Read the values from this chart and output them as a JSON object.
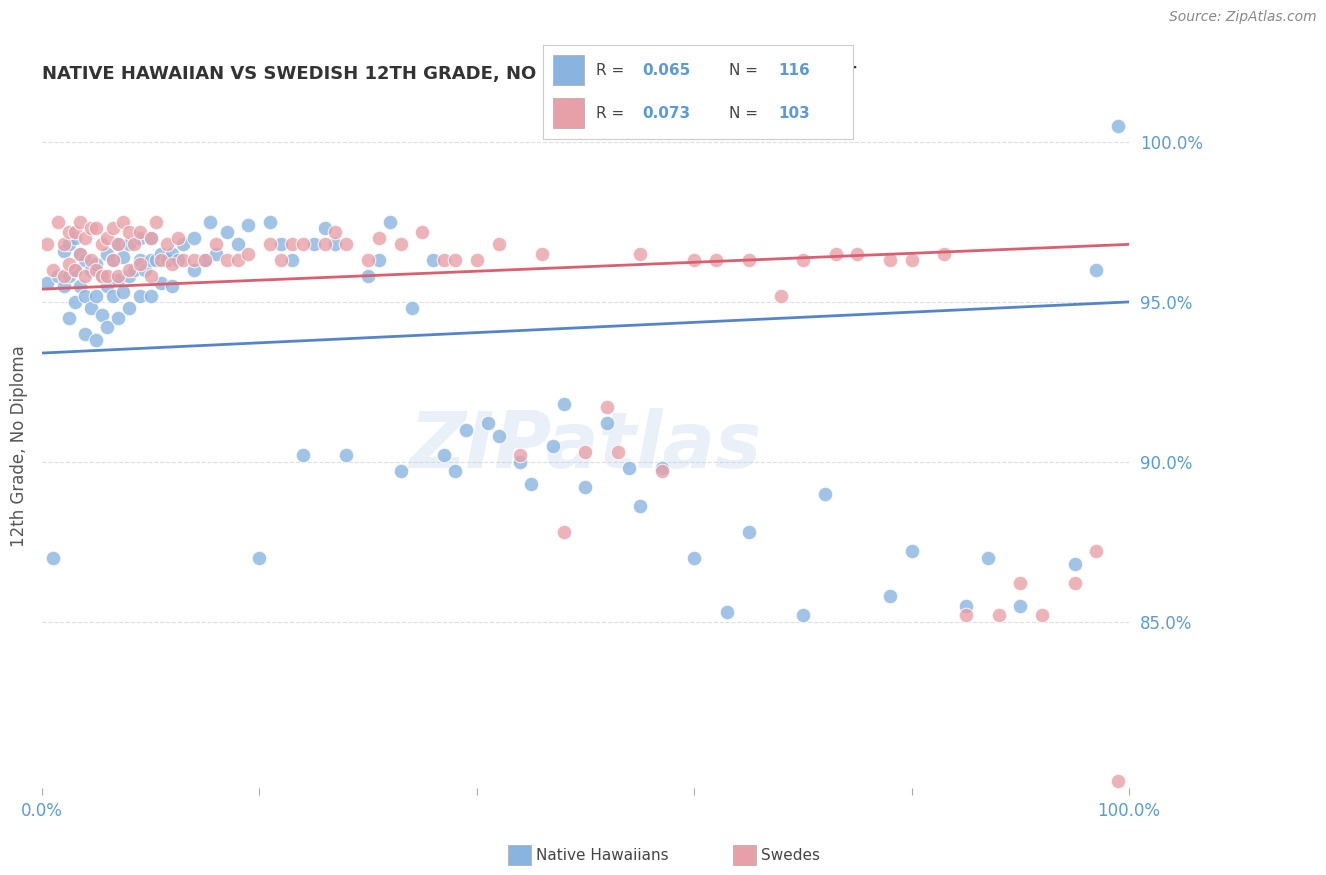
{
  "title": "NATIVE HAWAIIAN VS SWEDISH 12TH GRADE, NO DIPLOMA CORRELATION CHART",
  "source": "Source: ZipAtlas.com",
  "ylabel": "12th Grade, No Diploma",
  "x_min": 0.0,
  "x_max": 1.0,
  "y_min": 0.798,
  "y_max": 1.012,
  "x_ticks": [
    0.0,
    0.2,
    0.4,
    0.6,
    0.8,
    1.0
  ],
  "x_tick_labels": [
    "0.0%",
    "",
    "",
    "",
    "",
    "100.0%"
  ],
  "y_ticks": [
    0.85,
    0.9,
    0.95,
    1.0
  ],
  "y_tick_labels": [
    "85.0%",
    "90.0%",
    "95.0%",
    "100.0%"
  ],
  "color_blue": "#8ab4e0",
  "color_pink": "#e8a0a8",
  "line_color_blue": "#5585c8",
  "line_color_pink": "#d96070",
  "watermark": "ZIPatlas",
  "blue_line_y0": 0.934,
  "blue_line_y1": 0.95,
  "pink_line_y0": 0.954,
  "pink_line_y1": 0.968,
  "blue_scatter_x": [
    0.005,
    0.01,
    0.015,
    0.02,
    0.02,
    0.025,
    0.025,
    0.025,
    0.03,
    0.03,
    0.03,
    0.035,
    0.035,
    0.04,
    0.04,
    0.04,
    0.045,
    0.045,
    0.05,
    0.05,
    0.05,
    0.055,
    0.055,
    0.06,
    0.06,
    0.06,
    0.065,
    0.065,
    0.07,
    0.07,
    0.07,
    0.075,
    0.075,
    0.08,
    0.08,
    0.08,
    0.085,
    0.09,
    0.09,
    0.09,
    0.095,
    0.1,
    0.1,
    0.1,
    0.105,
    0.11,
    0.11,
    0.115,
    0.12,
    0.12,
    0.125,
    0.13,
    0.14,
    0.14,
    0.15,
    0.155,
    0.16,
    0.17,
    0.18,
    0.19,
    0.2,
    0.21,
    0.22,
    0.23,
    0.24,
    0.25,
    0.26,
    0.27,
    0.28,
    0.3,
    0.31,
    0.32,
    0.33,
    0.34,
    0.36,
    0.37,
    0.38,
    0.39,
    0.41,
    0.42,
    0.44,
    0.45,
    0.47,
    0.48,
    0.5,
    0.52,
    0.54,
    0.55,
    0.57,
    0.6,
    0.63,
    0.65,
    0.7,
    0.72,
    0.78,
    0.8,
    0.85,
    0.87,
    0.9,
    0.95,
    0.97,
    0.99
  ],
  "blue_scatter_y": [
    0.956,
    0.87,
    0.958,
    0.955,
    0.966,
    0.945,
    0.958,
    0.968,
    0.95,
    0.96,
    0.97,
    0.955,
    0.965,
    0.94,
    0.952,
    0.963,
    0.948,
    0.96,
    0.938,
    0.952,
    0.962,
    0.946,
    0.958,
    0.942,
    0.955,
    0.965,
    0.952,
    0.963,
    0.945,
    0.957,
    0.968,
    0.953,
    0.964,
    0.948,
    0.958,
    0.968,
    0.96,
    0.952,
    0.963,
    0.97,
    0.96,
    0.952,
    0.963,
    0.97,
    0.963,
    0.956,
    0.965,
    0.963,
    0.955,
    0.965,
    0.963,
    0.968,
    0.96,
    0.97,
    0.963,
    0.975,
    0.965,
    0.972,
    0.968,
    0.974,
    0.87,
    0.975,
    0.968,
    0.963,
    0.902,
    0.968,
    0.973,
    0.968,
    0.902,
    0.958,
    0.963,
    0.975,
    0.897,
    0.948,
    0.963,
    0.902,
    0.897,
    0.91,
    0.912,
    0.908,
    0.9,
    0.893,
    0.905,
    0.918,
    0.892,
    0.912,
    0.898,
    0.886,
    0.898,
    0.87,
    0.853,
    0.878,
    0.852,
    0.89,
    0.858,
    0.872,
    0.855,
    0.87,
    0.855,
    0.868,
    0.96,
    1.005
  ],
  "pink_scatter_x": [
    0.005,
    0.01,
    0.015,
    0.02,
    0.02,
    0.025,
    0.025,
    0.03,
    0.03,
    0.035,
    0.035,
    0.04,
    0.04,
    0.045,
    0.045,
    0.05,
    0.05,
    0.055,
    0.055,
    0.06,
    0.06,
    0.065,
    0.065,
    0.07,
    0.07,
    0.075,
    0.08,
    0.08,
    0.085,
    0.09,
    0.09,
    0.1,
    0.1,
    0.105,
    0.11,
    0.115,
    0.12,
    0.125,
    0.13,
    0.14,
    0.15,
    0.16,
    0.17,
    0.18,
    0.19,
    0.21,
    0.22,
    0.23,
    0.24,
    0.26,
    0.27,
    0.28,
    0.3,
    0.31,
    0.33,
    0.35,
    0.37,
    0.38,
    0.4,
    0.42,
    0.44,
    0.46,
    0.48,
    0.5,
    0.52,
    0.53,
    0.55,
    0.57,
    0.6,
    0.62,
    0.65,
    0.68,
    0.7,
    0.73,
    0.75,
    0.78,
    0.8,
    0.83,
    0.85,
    0.88,
    0.9,
    0.92,
    0.95,
    0.97,
    0.99
  ],
  "pink_scatter_y": [
    0.968,
    0.96,
    0.975,
    0.958,
    0.968,
    0.962,
    0.972,
    0.96,
    0.972,
    0.965,
    0.975,
    0.958,
    0.97,
    0.963,
    0.973,
    0.96,
    0.973,
    0.958,
    0.968,
    0.958,
    0.97,
    0.963,
    0.973,
    0.958,
    0.968,
    0.975,
    0.96,
    0.972,
    0.968,
    0.962,
    0.972,
    0.958,
    0.97,
    0.975,
    0.963,
    0.968,
    0.962,
    0.97,
    0.963,
    0.963,
    0.963,
    0.968,
    0.963,
    0.963,
    0.965,
    0.968,
    0.963,
    0.968,
    0.968,
    0.968,
    0.972,
    0.968,
    0.963,
    0.97,
    0.968,
    0.972,
    0.963,
    0.963,
    0.963,
    0.968,
    0.902,
    0.965,
    0.878,
    0.903,
    0.917,
    0.903,
    0.965,
    0.897,
    0.963,
    0.963,
    0.963,
    0.952,
    0.963,
    0.965,
    0.965,
    0.963,
    0.963,
    0.965,
    0.852,
    0.852,
    0.862,
    0.852,
    0.862,
    0.872,
    0.8
  ],
  "grid_color": "#dddddd",
  "background_color": "#ffffff",
  "title_color": "#333333",
  "tick_color": "#5b9bd5",
  "legend_text_color_value": "#5b9bd5"
}
